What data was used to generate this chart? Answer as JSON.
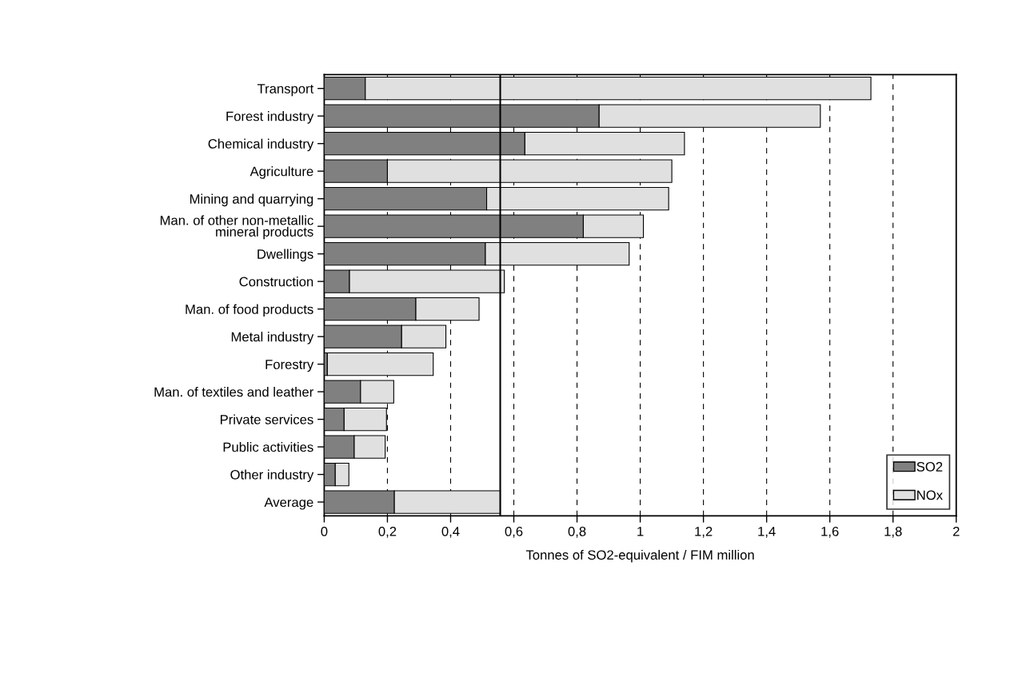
{
  "chart_data": {
    "type": "bar",
    "orientation": "horizontal",
    "stacked": true,
    "xlabel": "Tonnes of SO2-equivalent / FIM million",
    "categories": [
      "Transport",
      "Forest industry",
      "Chemical industry",
      "Agriculture",
      "Mining and quarrying",
      "Man. of other non-metallic\nmineral products",
      "Dwellings",
      "Construction",
      "Man. of food products",
      "Metal industry",
      "Forestry",
      "Man. of textiles and leather",
      "Private services",
      "Public activities",
      "Other industry",
      "Average"
    ],
    "series": [
      {
        "name": "SO2",
        "color": "#808080",
        "values": [
          0.13,
          0.87,
          0.635,
          0.2,
          0.514,
          0.82,
          0.51,
          0.08,
          0.29,
          0.245,
          0.01,
          0.115,
          0.063,
          0.095,
          0.035,
          0.222
        ]
      },
      {
        "name": "NOx",
        "color": "#e0e0e0",
        "values": [
          1.6,
          0.7,
          0.505,
          0.9,
          0.576,
          0.19,
          0.455,
          0.49,
          0.2,
          0.14,
          0.335,
          0.105,
          0.134,
          0.098,
          0.043,
          0.335
        ]
      }
    ],
    "xlim": [
      0,
      2
    ],
    "xticks": [
      0,
      {
        "value": 0.2,
        "label": "0,2"
      },
      {
        "value": 0.4,
        "label": "0,4"
      },
      {
        "value": 0.6,
        "label": "0,6"
      },
      {
        "value": 0.8,
        "label": "0,8"
      },
      1,
      {
        "value": 1.2,
        "label": "1,2"
      },
      {
        "value": 1.4,
        "label": "1,4"
      },
      {
        "value": 1.6,
        "label": "1,6"
      },
      {
        "value": 1.8,
        "label": "1,8"
      },
      2
    ],
    "ref_lines": [
      {
        "axis": "x",
        "value": 0.557,
        "color": "#000000",
        "line_style": "solid"
      }
    ],
    "grid": "x",
    "legend": "bottom right"
  }
}
